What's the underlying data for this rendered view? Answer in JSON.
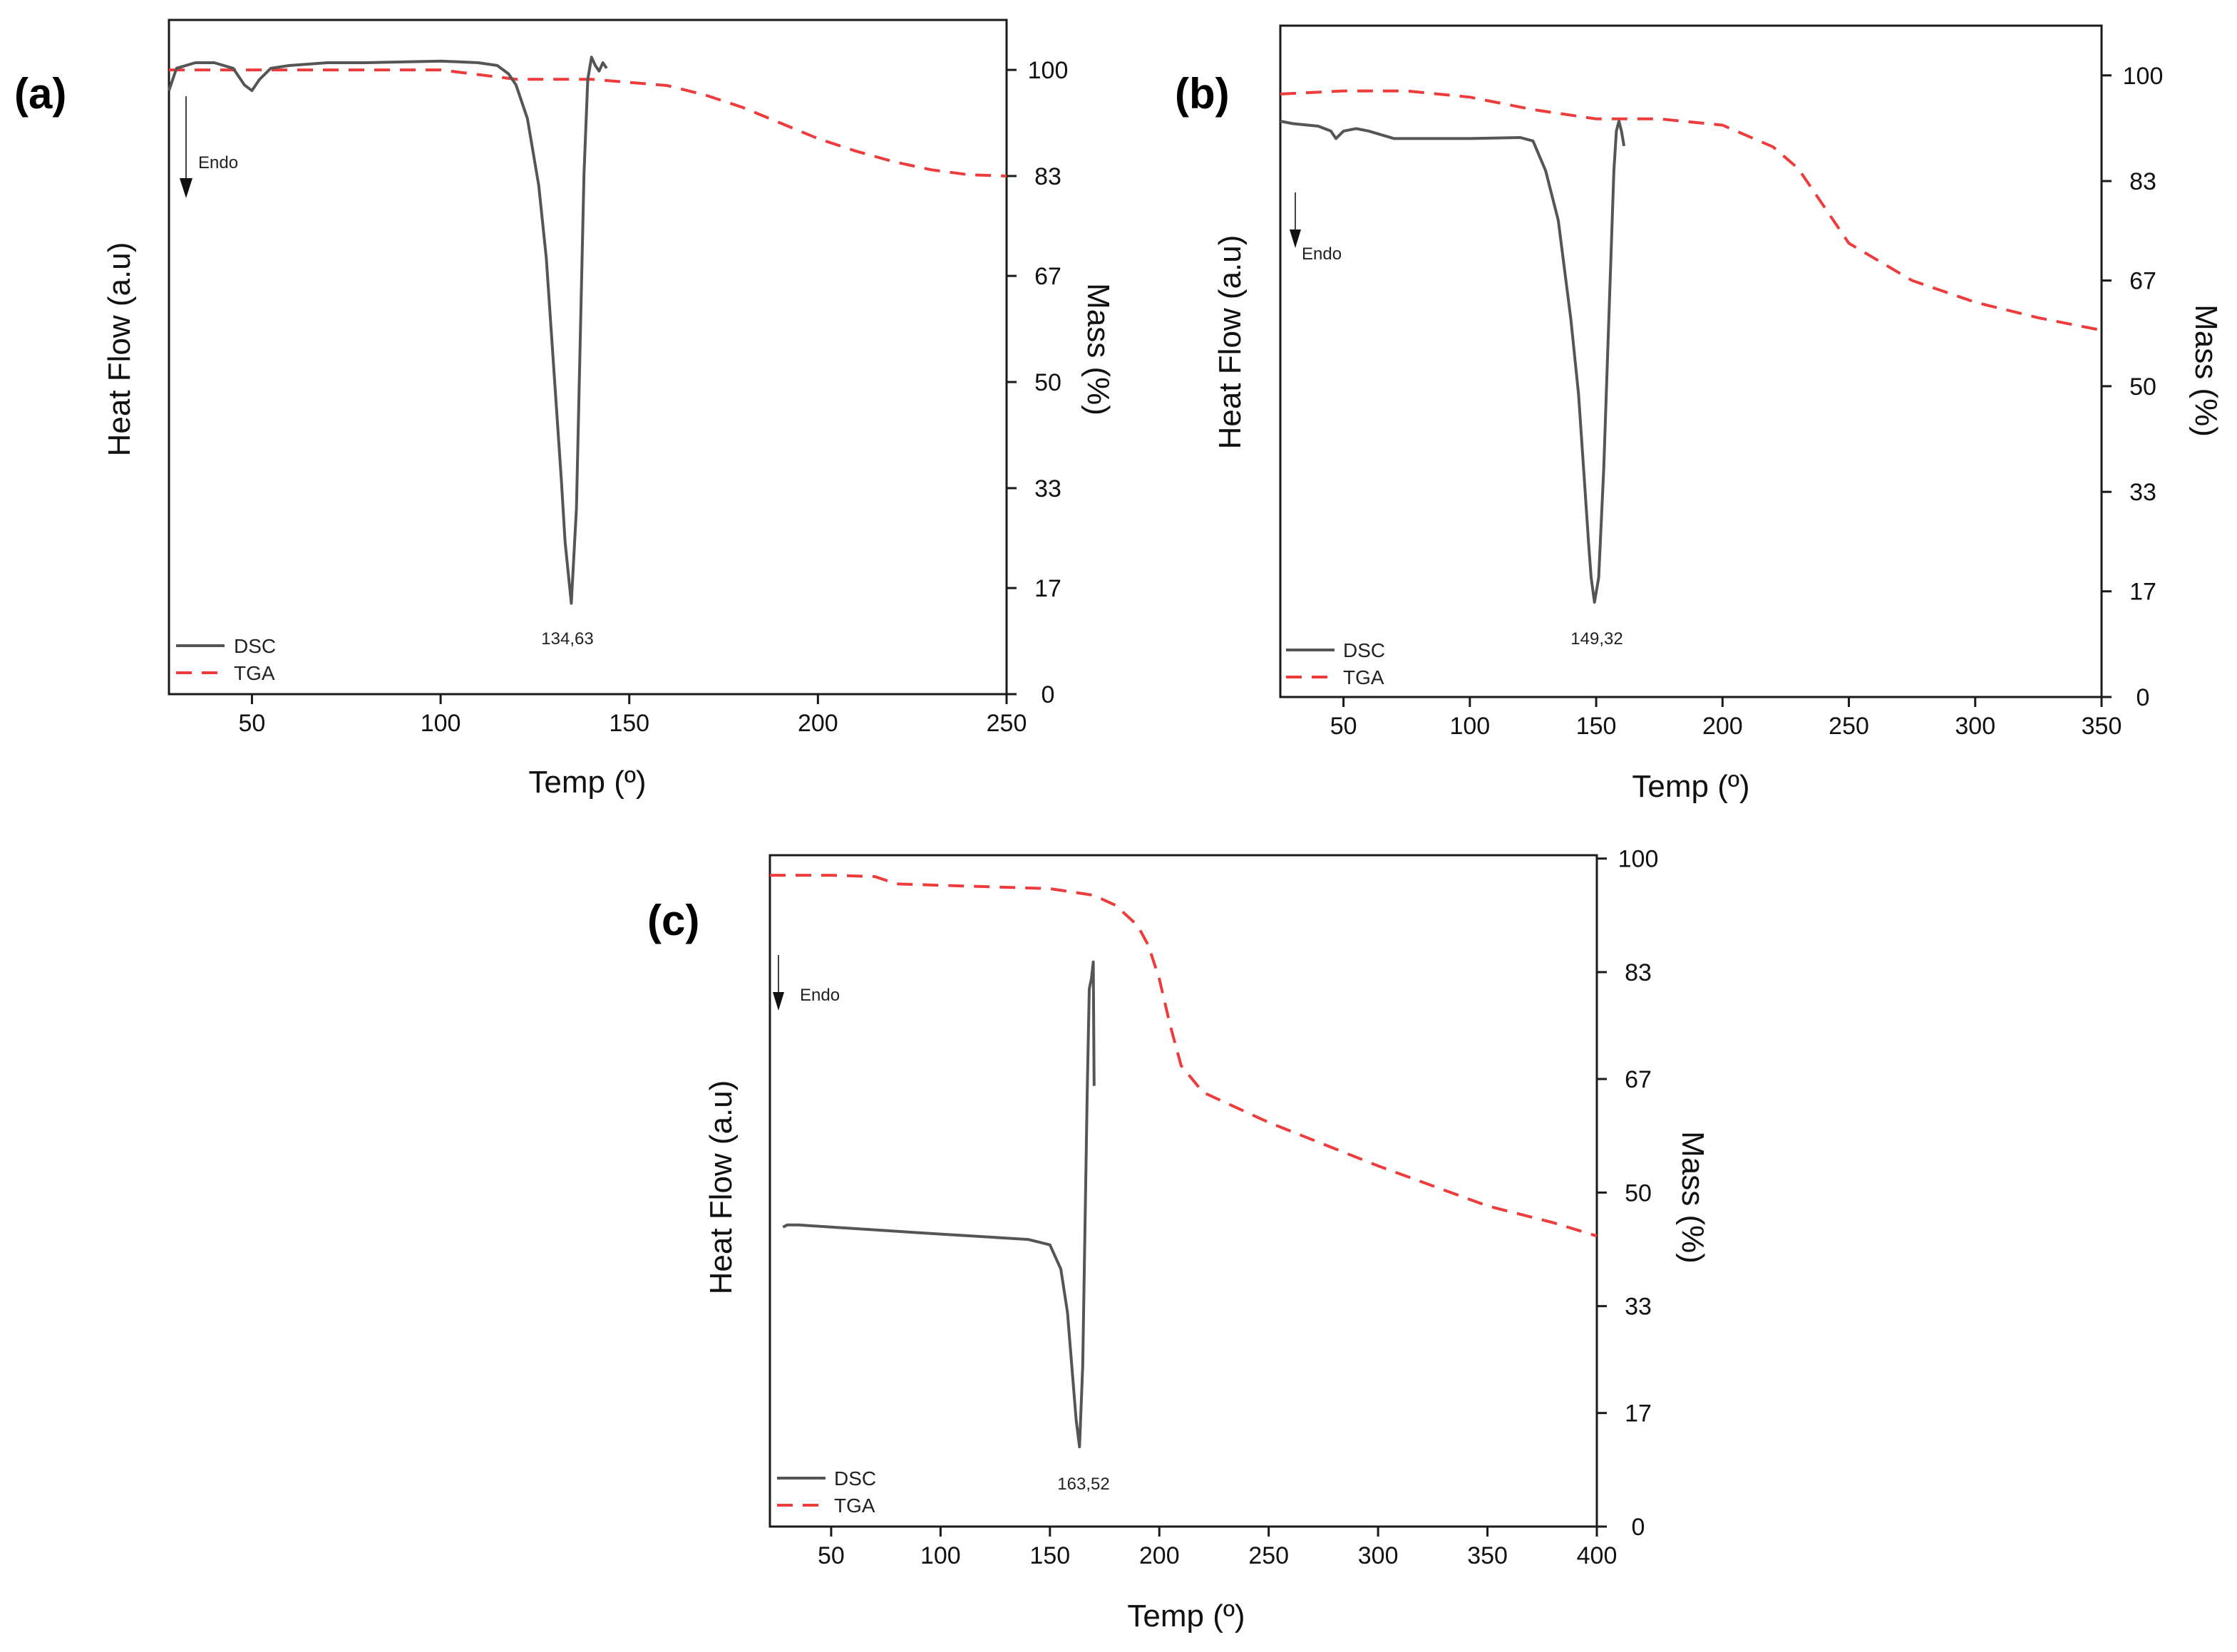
{
  "chart_data": [
    {
      "type": "line",
      "panel_label": "(a)",
      "xlabel": "Temp (º)",
      "ylabel_left": "Heat Flow (a.u)",
      "ylabel_right": "Mass (%)",
      "xlim": [
        28,
        250
      ],
      "x_ticks": [
        50,
        100,
        150,
        200,
        250
      ],
      "y_right_lim": [
        0,
        108
      ],
      "y_right_ticks": [
        0,
        17,
        33,
        50,
        67,
        83,
        100
      ],
      "endo_label": "Endo",
      "peak_label": "134,63",
      "legend": [
        "DSC",
        "TGA"
      ],
      "series": [
        {
          "name": "DSC",
          "axis": "left",
          "x": [
            28,
            30,
            35,
            40,
            45,
            48,
            50,
            52,
            55,
            60,
            70,
            80,
            100,
            110,
            115,
            118,
            120,
            123,
            126,
            128,
            130,
            132,
            133,
            134.63,
            136,
            137,
            138,
            139,
            140,
            141,
            142,
            143,
            144
          ],
          "values": [
            95,
            99,
            100,
            100,
            99,
            96,
            95,
            97,
            99,
            99.5,
            100,
            100,
            100.3,
            100,
            99.5,
            98,
            96,
            90,
            78,
            65,
            45,
            25,
            14,
            3,
            20,
            50,
            80,
            97,
            101,
            99.5,
            98.5,
            100,
            99
          ]
        },
        {
          "name": "TGA",
          "axis": "right",
          "x": [
            28,
            50,
            100,
            120,
            130,
            140,
            150,
            160,
            170,
            180,
            190,
            200,
            210,
            220,
            230,
            240,
            250
          ],
          "values": [
            100,
            100,
            100,
            98.5,
            98.5,
            98.5,
            98,
            97.5,
            96,
            94,
            91.5,
            89,
            87,
            85.3,
            84,
            83.2,
            83
          ]
        }
      ]
    },
    {
      "type": "line",
      "panel_label": "(b)",
      "xlabel": "Temp (º)",
      "ylabel_left": "Heat Flow (a.u)",
      "ylabel_right": "Mass (%)",
      "xlim": [
        25,
        350
      ],
      "x_ticks": [
        50,
        100,
        150,
        200,
        250,
        300,
        350
      ],
      "y_right_lim": [
        0,
        108
      ],
      "y_right_ticks": [
        0,
        17,
        33,
        50,
        67,
        83,
        100
      ],
      "endo_label": "Endo",
      "peak_label": "149,32",
      "legend": [
        "DSC",
        "TGA"
      ],
      "series": [
        {
          "name": "DSC",
          "axis": "left",
          "x": [
            25,
            30,
            40,
            45,
            47,
            50,
            55,
            60,
            70,
            80,
            100,
            120,
            125,
            130,
            135,
            140,
            143,
            145,
            147,
            148,
            149.32,
            151,
            153,
            155,
            157,
            158,
            159,
            160,
            161
          ],
          "values": [
            100,
            99.5,
            99,
            98,
            96.5,
            98,
            98.5,
            98,
            96.5,
            96.5,
            96.5,
            96.7,
            96,
            90,
            80,
            60,
            45,
            30,
            15,
            8,
            3,
            8,
            30,
            60,
            90,
            98,
            100,
            98,
            95
          ]
        },
        {
          "name": "TGA",
          "axis": "right",
          "x": [
            25,
            50,
            75,
            100,
            125,
            150,
            175,
            200,
            220,
            230,
            240,
            250,
            275,
            300,
            325,
            350
          ],
          "values": [
            97,
            97.5,
            97.5,
            96.5,
            94.5,
            93,
            93,
            92,
            88.5,
            85,
            79,
            73,
            67,
            63.5,
            61,
            59
          ]
        }
      ]
    },
    {
      "type": "line",
      "panel_label": "(c)",
      "xlabel": "Temp (º)",
      "ylabel_left": "Heat Flow (a.u)",
      "ylabel_right": "Mass (%)",
      "xlim": [
        22,
        400
      ],
      "x_ticks": [
        50,
        100,
        150,
        200,
        250,
        300,
        350,
        400
      ],
      "y_right_lim": [
        0,
        100.5
      ],
      "y_right_ticks": [
        0,
        17,
        33,
        50,
        67,
        83,
        100
      ],
      "endo_label": "Endo",
      "peak_label": "163,52",
      "legend": [
        "DSC",
        "TGA"
      ],
      "series": [
        {
          "name": "DSC",
          "axis": "left",
          "x": [
            28,
            30,
            35,
            50,
            100,
            140,
            150,
            155,
            158,
            160,
            162,
            163.52,
            165,
            166,
            167,
            168,
            169,
            169.8,
            170.2
          ],
          "values": [
            45.8,
            46.2,
            46.2,
            45.8,
            44.5,
            43.5,
            42.5,
            38,
            30,
            20,
            10,
            5,
            20,
            45,
            70,
            90,
            92,
            95,
            72
          ]
        },
        {
          "name": "TGA",
          "axis": "right",
          "x": [
            22,
            50,
            70,
            80,
            100,
            150,
            170,
            180,
            190,
            195,
            200,
            205,
            210,
            220,
            250,
            300,
            350,
            380,
            400
          ],
          "values": [
            97.5,
            97.5,
            97.3,
            96.2,
            96,
            95.5,
            94.5,
            93,
            90,
            87,
            82,
            75,
            69,
            65,
            60.5,
            54,
            48,
            45.5,
            43.5
          ]
        }
      ]
    }
  ]
}
